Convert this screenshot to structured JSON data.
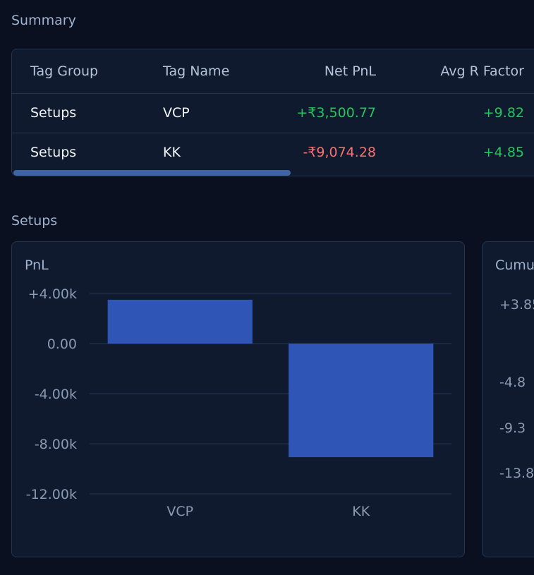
{
  "summary": {
    "title": "Summary",
    "columns": [
      "Tag Group",
      "Tag Name",
      "Net PnL",
      "Avg R Factor"
    ],
    "rows": [
      {
        "tag_group": "Setups",
        "tag_name": "VCP",
        "net_pnl": "+₹3,500.77",
        "avg_r": "+9.82"
      },
      {
        "tag_group": "Setups",
        "tag_name": "KK",
        "net_pnl": "-₹9,074.28",
        "avg_r": "+4.85"
      }
    ]
  },
  "setups": {
    "title": "Setups",
    "pnl_card_title": "PnL",
    "cum_card_title": "Cumu",
    "cum_ticks": [
      "+3.85",
      "-4.8",
      "-9.3",
      "-13.8"
    ]
  },
  "colors": {
    "bar": "#2f56b6",
    "positive": "#22c55e",
    "negative": "#f87171"
  },
  "chart_data": {
    "type": "bar",
    "title": "PnL",
    "categories": [
      "VCP",
      "KK"
    ],
    "values": [
      3500.77,
      -9074.28
    ],
    "ylim": [
      -12000,
      4000
    ],
    "y_ticks": [
      4000,
      0,
      -4000,
      -8000,
      -12000
    ],
    "y_tick_labels": [
      "+4.00k",
      "0.00",
      "-4.00k",
      "-8.00k",
      "-12.00k"
    ],
    "grid": true
  }
}
